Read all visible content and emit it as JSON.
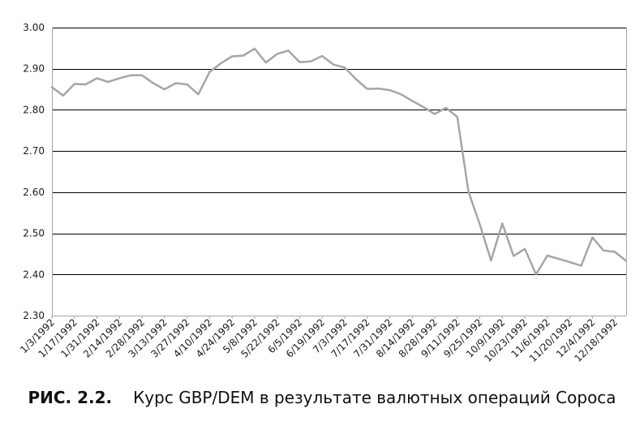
{
  "caption": {
    "figure_label": "РИС. 2.2.",
    "text": "Курс GBP/DEM в результате валютных операций Сороса"
  },
  "colors": {
    "line": "#a6a6a6",
    "grid": "#000000",
    "axis": "#a6a6a6"
  },
  "chart_data": {
    "type": "line",
    "title": "",
    "xlabel": "",
    "ylabel": "",
    "ylim": [
      2.3,
      3.0
    ],
    "y_ticks": [
      "2.30",
      "2.40",
      "2.50",
      "2.60",
      "2.70",
      "2.80",
      "2.90",
      "3.00"
    ],
    "grid": "horizontal",
    "legend": "none",
    "x_tick_labels": [
      "1/3/1992",
      "1/17/1992",
      "1/31/1992",
      "2/14/1992",
      "2/28/1992",
      "3/13/1992",
      "3/27/1992",
      "4/10/1992",
      "4/24/1992",
      "5/8/1992",
      "5/22/1992",
      "6/5/1992",
      "6/19/1992",
      "7/3/1992",
      "7/17/1992",
      "7/31/1992",
      "8/14/1992",
      "8/28/1992",
      "9/11/1992",
      "9/25/1992",
      "10/9/1992",
      "10/23/1992",
      "11/6/1992",
      "11/20/1992",
      "12/4/1992",
      "12/18/1992"
    ],
    "series": [
      {
        "x": [
          "1/3/1992",
          "1/10/1992",
          "1/17/1992",
          "1/24/1992",
          "1/31/1992",
          "2/7/1992",
          "2/14/1992",
          "2/21/1992",
          "2/28/1992",
          "3/6/1992",
          "3/13/1992",
          "3/20/1992",
          "3/27/1992",
          "4/3/1992",
          "4/10/1992",
          "4/17/1992",
          "4/24/1992",
          "5/1/1992",
          "5/8/1992",
          "5/15/1992",
          "5/22/1992",
          "5/29/1992",
          "6/5/1992",
          "6/12/1992",
          "6/19/1992",
          "6/26/1992",
          "7/3/1992",
          "7/10/1992",
          "7/17/1992",
          "7/24/1992",
          "7/31/1992",
          "8/7/1992",
          "8/14/1992",
          "8/21/1992",
          "8/28/1992",
          "9/4/1992",
          "9/11/1992",
          "9/18/1992",
          "9/25/1992",
          "10/2/1992",
          "10/9/1992",
          "10/16/1992",
          "10/23/1992",
          "10/30/1992",
          "11/6/1992",
          "11/13/1992",
          "11/20/1992",
          "11/27/1992",
          "12/4/1992",
          "12/11/1992",
          "12/18/1992",
          "12/25/1992"
        ],
        "values": [
          2.855,
          2.835,
          2.863,
          2.862,
          2.877,
          2.868,
          2.877,
          2.884,
          2.884,
          2.865,
          2.85,
          2.865,
          2.862,
          2.838,
          2.892,
          2.913,
          2.93,
          2.932,
          2.949,
          2.915,
          2.936,
          2.944,
          2.916,
          2.918,
          2.931,
          2.91,
          2.903,
          2.875,
          2.851,
          2.852,
          2.848,
          2.838,
          2.822,
          2.807,
          2.79,
          2.805,
          2.783,
          2.601,
          2.522,
          2.434,
          2.524,
          2.445,
          2.462,
          2.4,
          2.446,
          2.438,
          2.43,
          2.421,
          2.49,
          2.458,
          2.455,
          2.433
        ]
      }
    ]
  }
}
